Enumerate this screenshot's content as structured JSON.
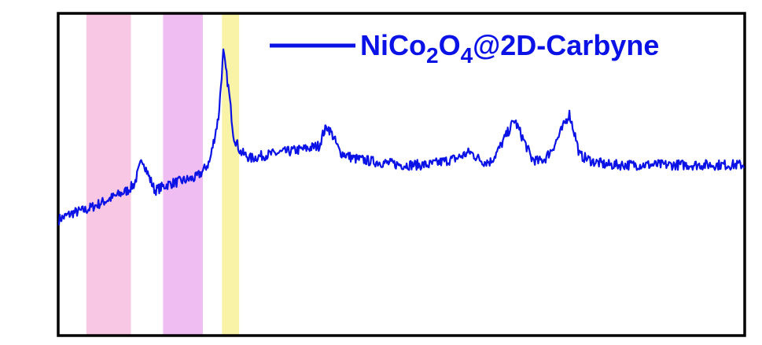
{
  "chart_data": {
    "type": "line",
    "title": "",
    "xlabel": "",
    "ylabel": "",
    "grid": false,
    "legend_position": "top-right",
    "xlim": [
      0,
      100
    ],
    "ylim": [
      0,
      100
    ],
    "series": [
      {
        "name": "NiCo2O4@2D-Carbyne",
        "name_parts": {
          "base1": "NiCo",
          "sub1": "2",
          "base2": "O",
          "sub2": "4",
          "base3": "@2D-Carbyne"
        },
        "color": "#0a12e6",
        "x": [
          0,
          2,
          4,
          6,
          8,
          10,
          11,
          12.2,
          13,
          14,
          15,
          16,
          18,
          20,
          21,
          22,
          23.3,
          24,
          24.8,
          25.5,
          26.5,
          28,
          30,
          33,
          36,
          38,
          38.6,
          39.2,
          40,
          41,
          43,
          46,
          50,
          54,
          58,
          60,
          61.2,
          62,
          63,
          64,
          65,
          66.5,
          68,
          69,
          70,
          71,
          72,
          73,
          74.5,
          75.5,
          76,
          77,
          78,
          80,
          84,
          88,
          92,
          96,
          100
        ],
        "y": [
          36,
          38,
          39,
          41,
          43,
          45,
          47,
          55,
          50,
          45,
          46,
          47,
          48,
          49,
          51,
          54,
          68,
          88,
          76,
          62,
          57,
          55,
          56,
          57,
          58,
          59,
          63,
          65,
          62,
          57,
          55,
          54,
          53,
          53,
          55,
          57,
          55,
          54,
          54,
          57,
          61,
          67,
          60,
          55,
          54,
          55,
          58,
          62,
          69,
          61,
          56,
          55,
          54,
          53,
          53,
          53,
          53,
          53,
          53
        ]
      }
    ],
    "highlight_bands": [
      {
        "x": [
          4,
          10.5
        ],
        "color": "#f8c7e3"
      },
      {
        "x": [
          15.2,
          21
        ],
        "color": "#efbdf2"
      },
      {
        "x": [
          23.8,
          26.3
        ],
        "color": "#f8f3a6"
      }
    ]
  }
}
